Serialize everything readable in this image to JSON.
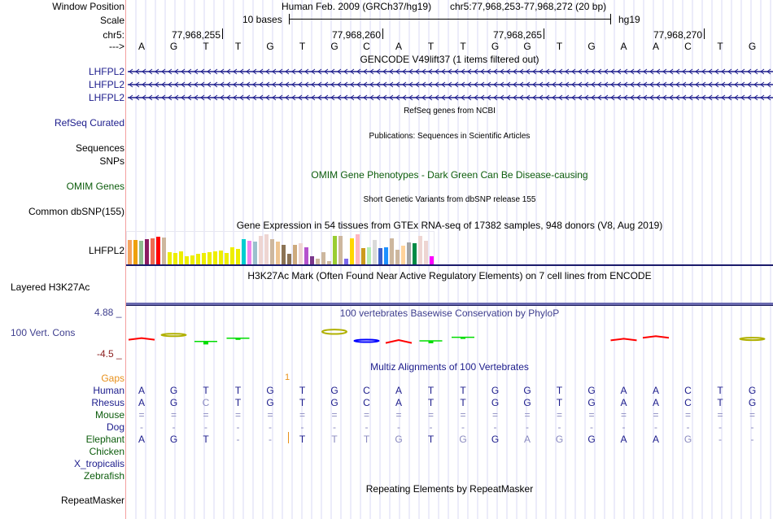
{
  "header": {
    "window_position_label": "Window Position",
    "assembly": "Human Feb. 2009 (GRCh37/hg19)",
    "position": "chr5:77,968,253-77,968,272 (20 bp)",
    "scale_label": "Scale",
    "scale_text": "10 bases",
    "scale_db": "hg19",
    "chrom_label": "chr5:",
    "strand_label": "--->",
    "ticks": [
      "77,968,255",
      "77,968,260",
      "77,968,265",
      "77,968,270"
    ],
    "bases": [
      "A",
      "G",
      "T",
      "T",
      "G",
      "T",
      "G",
      "C",
      "A",
      "T",
      "T",
      "G",
      "G",
      "T",
      "G",
      "A",
      "A",
      "C",
      "T",
      "G"
    ]
  },
  "tracks": {
    "gencode": {
      "title": "GENCODE V49lift37 (1 items filtered out)",
      "items": [
        "LHFPL2",
        "LHFPL2",
        "LHFPL2"
      ],
      "color": "#1c1c8c"
    },
    "refseq": {
      "title": "RefSeq genes from NCBI",
      "label": "RefSeq Curated"
    },
    "publications": {
      "title": "Publications: Sequences in Scientific Articles",
      "labels": [
        "Sequences",
        "SNPs"
      ]
    },
    "omim": {
      "title": "OMIM Gene Phenotypes - Dark Green Can Be Disease-causing",
      "label": "OMIM Genes"
    },
    "dbsnp": {
      "title": "Short Genetic Variants from dbSNP release 155",
      "label": "Common dbSNP(155)"
    },
    "gtex": {
      "title": "Gene Expression in 54 tissues from GTEx RNA-seq of 17382 samples, 948 donors (V8, Aug 2019)",
      "label": "LHFPL2",
      "bars": [
        {
          "color": "#f4a460",
          "value": 0.82
        },
        {
          "color": "#eea00c",
          "value": 0.82
        },
        {
          "color": "#8fbc8f",
          "value": 0.8
        },
        {
          "color": "#8b1c62",
          "value": 0.85
        },
        {
          "color": "#ee6a50",
          "value": 0.87
        },
        {
          "color": "#ff0000",
          "value": 0.93
        },
        {
          "color": "#cdb79e",
          "value": 0.9
        },
        {
          "color": "#eeee00",
          "value": 0.42
        },
        {
          "color": "#eeee00",
          "value": 0.4
        },
        {
          "color": "#eeee00",
          "value": 0.46
        },
        {
          "color": "#eeee00",
          "value": 0.3
        },
        {
          "color": "#eeee00",
          "value": 0.32
        },
        {
          "color": "#eeee00",
          "value": 0.38
        },
        {
          "color": "#eeee00",
          "value": 0.4
        },
        {
          "color": "#eeee00",
          "value": 0.43
        },
        {
          "color": "#eeee00",
          "value": 0.45
        },
        {
          "color": "#eeee00",
          "value": 0.48
        },
        {
          "color": "#eeee00",
          "value": 0.4
        },
        {
          "color": "#eeee00",
          "value": 0.58
        },
        {
          "color": "#eeee00",
          "value": 0.52
        },
        {
          "color": "#00ced1",
          "value": 0.83
        },
        {
          "color": "#ee82ee",
          "value": 0.8
        },
        {
          "color": "#9ac0cd",
          "value": 0.75
        },
        {
          "color": "#eed5d2",
          "value": 0.95
        },
        {
          "color": "#eed5d2",
          "value": 1.0
        },
        {
          "color": "#cdb79e",
          "value": 0.85
        },
        {
          "color": "#eec591",
          "value": 0.75
        },
        {
          "color": "#8b7355",
          "value": 0.66
        },
        {
          "color": "#8b7355",
          "value": 0.38
        },
        {
          "color": "#cdaa7d",
          "value": 0.66
        },
        {
          "color": "#eed5d2",
          "value": 0.72
        },
        {
          "color": "#b452cd",
          "value": 0.57
        },
        {
          "color": "#7a378b",
          "value": 0.3
        },
        {
          "color": "#cdb79e",
          "value": 0.22
        },
        {
          "color": "#cdb79e",
          "value": 0.42
        },
        {
          "color": "#cdb79e",
          "value": 0.12
        },
        {
          "color": "#9acd32",
          "value": 0.96
        },
        {
          "color": "#cdb79e",
          "value": 0.96
        },
        {
          "color": "#7b68ee",
          "value": 0.2
        },
        {
          "color": "#ffd700",
          "value": 0.88
        },
        {
          "color": "#ffb6c1",
          "value": 1.0
        },
        {
          "color": "#cd9b1d",
          "value": 0.55
        },
        {
          "color": "#b4eeb4",
          "value": 0.58
        },
        {
          "color": "#d9d9d9",
          "value": 0.82
        },
        {
          "color": "#3a5fcd",
          "value": 0.54
        },
        {
          "color": "#1e90ff",
          "value": 0.58
        },
        {
          "color": "#cdb79e",
          "value": 0.88
        },
        {
          "color": "#cdb79e",
          "value": 0.5
        },
        {
          "color": "#ffd39b",
          "value": 0.62
        },
        {
          "color": "#a6a6a6",
          "value": 0.73
        },
        {
          "color": "#008b45",
          "value": 0.7
        },
        {
          "color": "#eed5d2",
          "value": 0.95
        },
        {
          "color": "#eed5d2",
          "value": 0.8
        },
        {
          "color": "#ff00ff",
          "value": 0.28
        }
      ]
    },
    "h3k27ac": {
      "title": "H3K27Ac Mark (Often Found Near Active Regulatory Elements) on 7 cell lines from ENCODE",
      "label": "Layered H3K27Ac"
    },
    "phylop": {
      "title": "100 vertebrates Basewise Conservation by PhyloP",
      "label": "100 Vert. Cons",
      "max_label": "4.88 _",
      "min_label": "-4.5 _",
      "values": [
        -0.2,
        0.4,
        -0.6,
        -0.1,
        0,
        0,
        0.9,
        -0.5,
        -0.6,
        -0.5,
        0.05,
        0,
        0,
        0,
        0,
        -0.3,
        0.1,
        0,
        0,
        -0.2
      ]
    },
    "multiz": {
      "title": "Multiz Alignments of 100 Vertebrates",
      "gaps_label": "Gaps",
      "gap_marker": "1",
      "species": [
        {
          "name": "Human",
          "color": "#1c1c8c",
          "seq": [
            "A",
            "G",
            "T",
            "T",
            "G",
            "T",
            "G",
            "C",
            "A",
            "T",
            "T",
            "G",
            "G",
            "T",
            "G",
            "A",
            "A",
            "C",
            "T",
            "G"
          ]
        },
        {
          "name": "Rhesus",
          "color": "#1c1c8c",
          "seq": [
            "A",
            "G",
            "C",
            "T",
            "G",
            "T",
            "G",
            "C",
            "A",
            "T",
            "T",
            "G",
            "G",
            "T",
            "G",
            "A",
            "A",
            "C",
            "T",
            "G"
          ]
        },
        {
          "name": "Mouse",
          "color": "#0c5c0c",
          "seq": [
            "=",
            "=",
            "=",
            "=",
            "=",
            "=",
            "=",
            "=",
            "=",
            "=",
            "=",
            "=",
            "=",
            "=",
            "=",
            "=",
            "=",
            "=",
            "=",
            "="
          ]
        },
        {
          "name": "Dog",
          "color": "#1c1c8c",
          "seq": [
            "-",
            "-",
            "-",
            "-",
            "-",
            "-",
            "-",
            "-",
            "-",
            "-",
            "-",
            "-",
            "-",
            "-",
            "-",
            "-",
            "-",
            "-",
            "-",
            "-"
          ]
        },
        {
          "name": "Elephant",
          "color": "#0c5c0c",
          "seq": [
            "A",
            "G",
            "T",
            "-",
            "-",
            "T",
            "T",
            "T",
            "G",
            "T",
            "G",
            "G",
            "A",
            "G",
            "G",
            "A",
            "A",
            "G",
            "-",
            "-"
          ]
        },
        {
          "name": "Chicken",
          "color": "#0c5c0c",
          "seq": []
        },
        {
          "name": "X_tropicalis",
          "color": "#1c1c8c",
          "seq": []
        },
        {
          "name": "Zebrafish",
          "color": "#0c5c0c",
          "seq": []
        }
      ],
      "rhesus_diff": [
        2
      ],
      "elephant_light": [
        3,
        4,
        6,
        7,
        8,
        10,
        12,
        13,
        17,
        18,
        19
      ]
    },
    "repeatmasker": {
      "title": "Repeating Elements by RepeatMasker",
      "label": "RepeatMasker"
    }
  }
}
